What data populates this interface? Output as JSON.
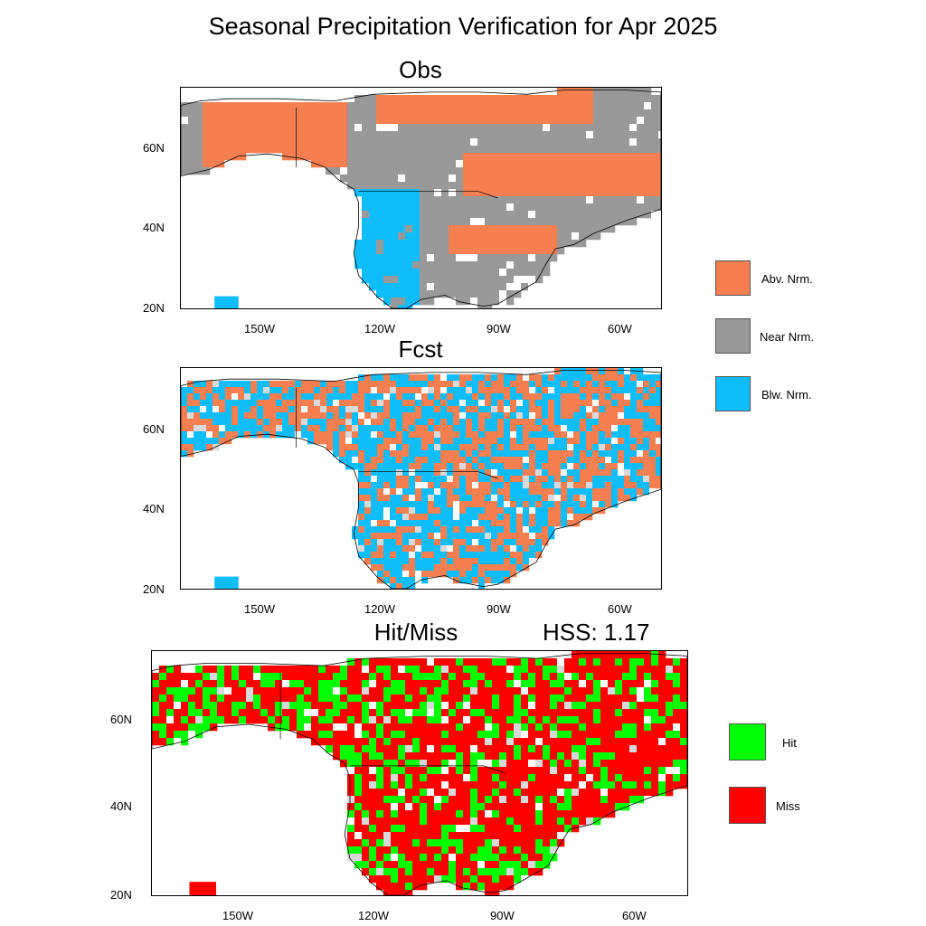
{
  "title": "Seasonal Precipitation Verification for Apr 2025",
  "panels": {
    "obs": {
      "title": "Obs"
    },
    "fcst": {
      "title": "Fcst"
    },
    "hitmiss": {
      "title": "Hit/Miss",
      "score_label": "HSS:  1.17"
    }
  },
  "axis_labels": {
    "lat": [
      "60N",
      "40N",
      "20N"
    ],
    "lon": [
      "150W",
      "120W",
      "90W",
      "60W"
    ]
  },
  "legend_tercile": [
    {
      "label": "Abv. Nrm.",
      "color": "#f57f50"
    },
    {
      "label": "Near Nrm.",
      "color": "#999999"
    },
    {
      "label": "Blw. Nrm.",
      "color": "#0fbdfb"
    }
  ],
  "legend_hitmiss": [
    {
      "label": "Hit",
      "color": "#00ff00"
    },
    {
      "label": "Miss",
      "color": "#ff0000"
    }
  ],
  "hss": 1.17,
  "colors": {
    "land_missing": "#d9d9d9",
    "coast": "#000000"
  }
}
